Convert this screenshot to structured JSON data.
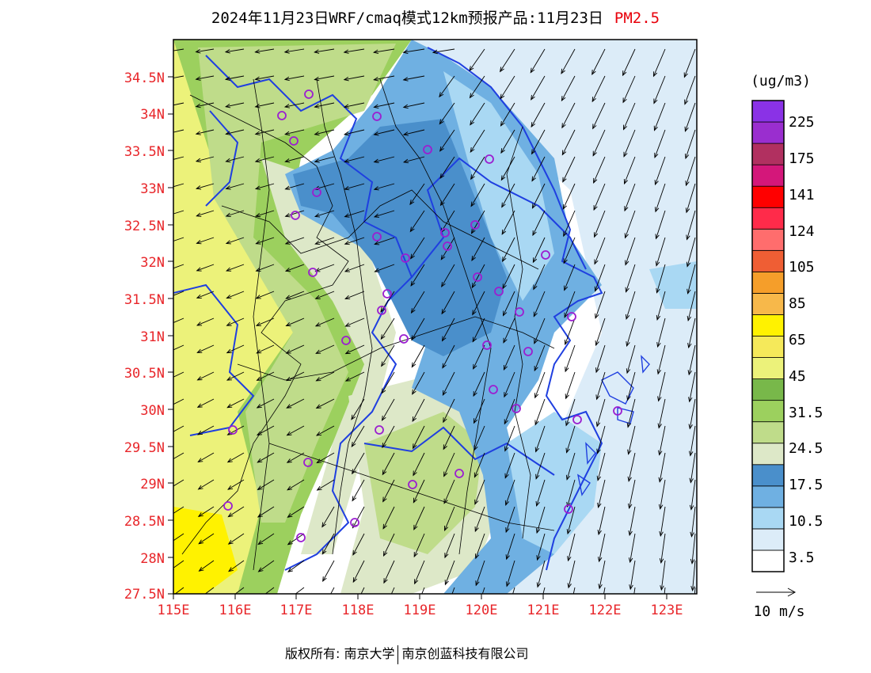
{
  "title": {
    "main": "2024年11月23日WRF/cmaq模式12km预报产品:11月23日",
    "pollutant": "PM2.5"
  },
  "footer": {
    "left": "版权所有: 南京大学",
    "right": "南京创蓝科技有限公司"
  },
  "map": {
    "lat_labels": [
      "34.5N",
      "34N",
      "33.5N",
      "33N",
      "32.5N",
      "32N",
      "31.5N",
      "31N",
      "30.5N",
      "30N",
      "29.5N",
      "29N",
      "28.5N",
      "28N",
      "27.5N"
    ],
    "lon_labels": [
      "115E",
      "116E",
      "117E",
      "118E",
      "119E",
      "120E",
      "121E",
      "122E",
      "123E"
    ],
    "boundary_color": "#1f3fe0",
    "station_marker_color": "#9b1fd0"
  },
  "colorbar": {
    "unit": "(ug/m3)",
    "colors": [
      "#ffffff",
      "#dcecf8",
      "#a9d8f3",
      "#6fb0e2",
      "#4a8fcb",
      "#dde8c8",
      "#bfdc8a",
      "#9cd05e",
      "#78b84a",
      "#ecf27a",
      "#f5e95a",
      "#fff200",
      "#f7b84a",
      "#f59e2a",
      "#ef5e34",
      "#ff6d6d",
      "#ff2b4a",
      "#ff0000",
      "#d4177a",
      "#b13060",
      "#9a2ecf",
      "#8a32e6"
    ],
    "labels": [
      "3.5",
      "10.5",
      "17.5",
      "24.5",
      "31.5",
      "45",
      "65",
      "85",
      "105",
      "124",
      "141",
      "175",
      "225"
    ]
  },
  "vector_legend": {
    "label": "10 m/s"
  }
}
